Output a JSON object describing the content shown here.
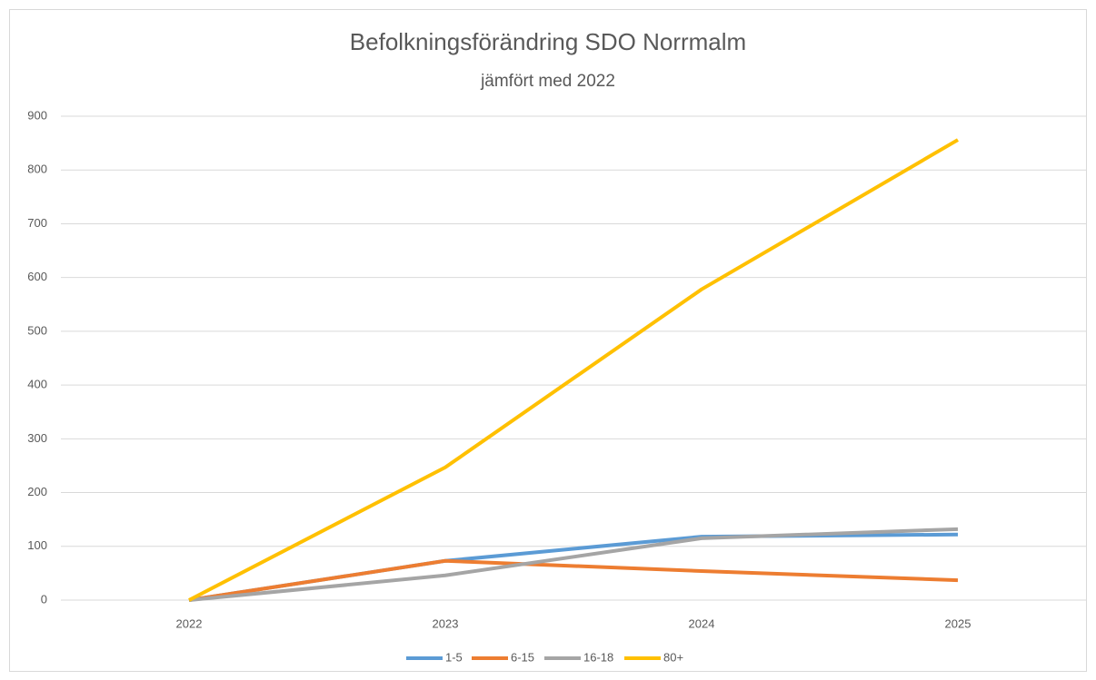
{
  "chart_data": {
    "type": "line",
    "title": "Befolkningsförändring SDO Norrmalm",
    "subtitle": "jämfört med 2022",
    "categories": [
      "2022",
      "2023",
      "2024",
      "2025"
    ],
    "series": [
      {
        "name": "1-5",
        "color": "#5b9bd5",
        "values": [
          0,
          73,
          118,
          122
        ]
      },
      {
        "name": "6-15",
        "color": "#ed7d31",
        "values": [
          0,
          73,
          54,
          37
        ]
      },
      {
        "name": "16-18",
        "color": "#a5a5a5",
        "values": [
          0,
          46,
          115,
          132
        ]
      },
      {
        "name": "80+",
        "color": "#ffc000",
        "values": [
          0,
          247,
          578,
          856
        ]
      }
    ],
    "ylim": [
      0,
      900
    ],
    "yticks": [
      0,
      100,
      200,
      300,
      400,
      500,
      600,
      700,
      800,
      900
    ],
    "grid": true,
    "legend": "bottom"
  }
}
